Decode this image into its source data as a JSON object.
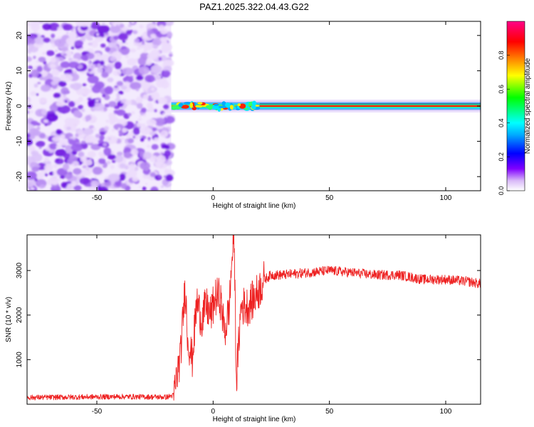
{
  "title": "PAZ1.2025.322.04.43.G22",
  "chart_data": [
    {
      "type": "heatmap",
      "title": "PAZ1.2025.322.04.43.G22",
      "xlabel": "Height of straight line (km)",
      "ylabel": "Frequency (Hz)",
      "xlim": [
        -80,
        115
      ],
      "ylim": [
        -24,
        24
      ],
      "xticks": [
        -50,
        0,
        50,
        100
      ],
      "yticks": [
        -20,
        -10,
        0,
        10,
        20
      ],
      "colorbar": {
        "label": "Normalized spectral amplitude",
        "range": [
          0,
          1
        ],
        "ticks": [
          0.0,
          0.2,
          0.4,
          0.6,
          0.8
        ],
        "tick_labels": [
          "0.0",
          "0.2",
          "0.4",
          "0.6",
          "0.8"
        ],
        "colors": [
          "#ffffff",
          "#8000ff",
          "#0000ff",
          "#00ffff",
          "#00ff00",
          "#ffff00",
          "#ff8000",
          "#ff0000",
          "#ff00aa"
        ]
      },
      "regions": [
        {
          "name": "noise",
          "x_range": [
            -80,
            -18
          ],
          "freq_range": [
            -24,
            24
          ],
          "amplitude": "low (0.0-0.15)"
        },
        {
          "name": "signal",
          "x_range": [
            -18,
            115
          ],
          "center_freq": 0,
          "amplitude": "high (0.4-1.0)"
        }
      ]
    },
    {
      "type": "line",
      "xlabel": "Height of straight line (km)",
      "ylabel": "SNR (10 * v/v)",
      "xlim": [
        -80,
        115
      ],
      "ylim": [
        0,
        3800
      ],
      "xticks": [
        -50,
        0,
        50,
        100
      ],
      "yticks": [
        1000,
        2000,
        3000
      ],
      "series": [
        {
          "name": "SNR",
          "color": "#ee2222",
          "x": [
            -80,
            -60,
            -40,
            -20,
            -17,
            -14,
            -12,
            -11,
            -9,
            -7,
            -5,
            -3,
            -1,
            1,
            3,
            5,
            7,
            8,
            9,
            10,
            12,
            15,
            18,
            20,
            22,
            25,
            30,
            40,
            50,
            60,
            70,
            80,
            90,
            100,
            110,
            115
          ],
          "values": [
            150,
            160,
            170,
            160,
            200,
            1100,
            2700,
            1500,
            1000,
            2300,
            1900,
            2200,
            2000,
            2400,
            2400,
            1600,
            2200,
            3200,
            3800,
            500,
            2200,
            2200,
            2400,
            2600,
            2800,
            2900,
            2900,
            2950,
            3000,
            2950,
            2900,
            2900,
            2800,
            2800,
            2750,
            2700
          ]
        }
      ]
    }
  ]
}
